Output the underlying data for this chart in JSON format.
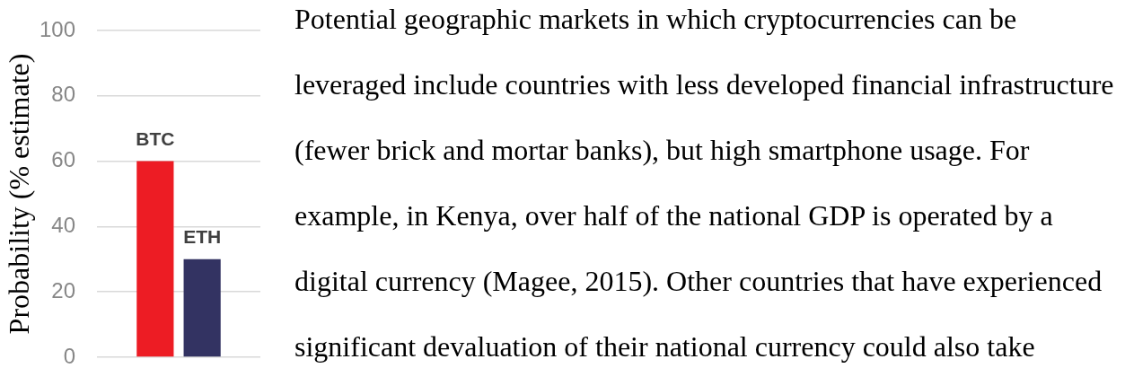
{
  "chart_data": {
    "type": "bar",
    "ylabel": "Probability (% estimate)",
    "categories": [
      null
    ],
    "series": [
      {
        "name": "BTC",
        "color": "#ed1c24",
        "values": [
          60
        ]
      },
      {
        "name": "ETH",
        "color": "#333362",
        "values": [
          30
        ]
      }
    ],
    "ylim": [
      0,
      100
    ],
    "yticks": [
      0,
      20,
      40,
      60,
      80,
      100
    ],
    "grid": "y",
    "tick_labels": "y",
    "annotations": [
      "Potential geographic markets in which cryptocurrencies can be leveraged include countries with less developed financial infrastructure (fewer brick and mortar banks), but high smartphone usage. For example, in Kenya, over half of the national GDP is operated by a digital currency (Magee, 2015). Other countries that have experienced significant devaluation of their national currency could also take"
    ]
  }
}
